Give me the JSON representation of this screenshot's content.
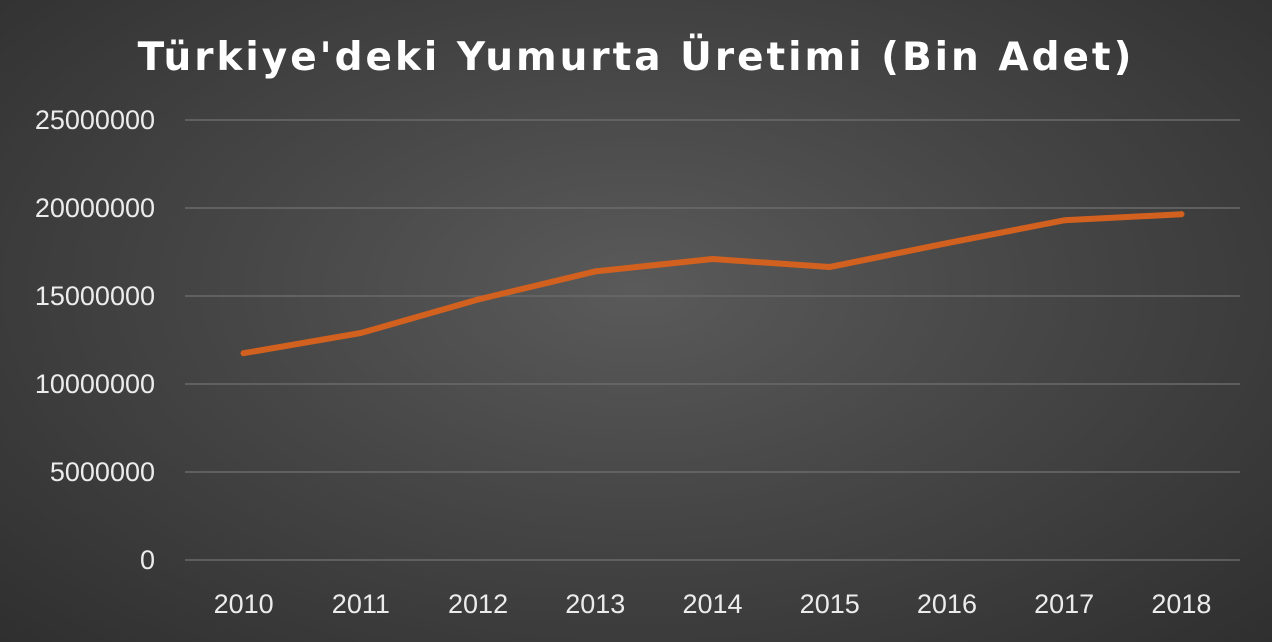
{
  "chart_data": {
    "type": "line",
    "title": "Türkiye'deki Yumurta Üretimi (Bin Adet)",
    "xlabel": "",
    "ylabel": "",
    "categories": [
      "2010",
      "2011",
      "2012",
      "2013",
      "2014",
      "2015",
      "2016",
      "2017",
      "2018"
    ],
    "series": [
      {
        "values": [
          11750000,
          12900000,
          14800000,
          16400000,
          17100000,
          16650000,
          18000000,
          19300000,
          19650000
        ],
        "color": "#d2601f"
      }
    ],
    "ylim": [
      0,
      25000000
    ],
    "yticks": [
      "0",
      "5000000",
      "10000000",
      "15000000",
      "20000000",
      "25000000"
    ],
    "grid": true,
    "legend": "none"
  }
}
